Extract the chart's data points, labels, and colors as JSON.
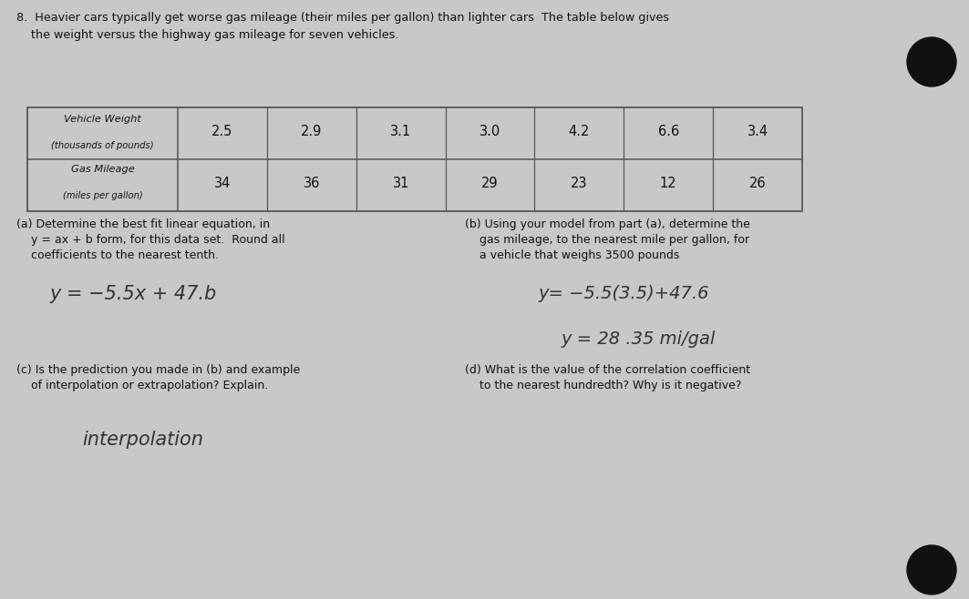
{
  "background_color": "#c8c8c8",
  "page_color": "#d4d0cc",
  "title_line1": "8.  Heavier cars typically get worse gas mileage (their miles per gallon) than lighter cars  The table below gives",
  "title_line2": "    the weight versus the highway gas mileage for seven vehicles.",
  "weights": [
    "2.5",
    "2.9",
    "3.1",
    "3.0",
    "4.2",
    "6.6",
    "3.4"
  ],
  "mileages": [
    "34",
    "36",
    "31",
    "29",
    "23",
    "12",
    "26"
  ],
  "part_a_label_lines": [
    "(a) Determine the best fit linear equation, in",
    "    y = ax + b form, for this data set.  Round all",
    "    coefficients to the nearest tenth."
  ],
  "part_a_answer": "y = −5.5x + 47.b",
  "part_b_label_lines": [
    "(b) Using your model from part (a), determine the",
    "    gas mileage, to the nearest mile per gallon, for",
    "    a vehicle that weighs 3500 pounds"
  ],
  "part_b_answer1": "y= -5.5(3.5)+47.6",
  "part_b_answer2": "y = 28 .35 mi/gal",
  "part_c_label_lines": [
    "(c) Is the prediction you made in (b) and example",
    "    of interpolation or extrapolation? Explain."
  ],
  "part_c_answer": "interpolation",
  "part_d_label_lines": [
    "(d) What is the value of the correlation coefficient",
    "    to the nearest hundredth? Why is it negative?"
  ],
  "dot_color": "#111111",
  "text_color": "#111111",
  "table_line_color": "#555555",
  "handwriting_color": "#333333"
}
